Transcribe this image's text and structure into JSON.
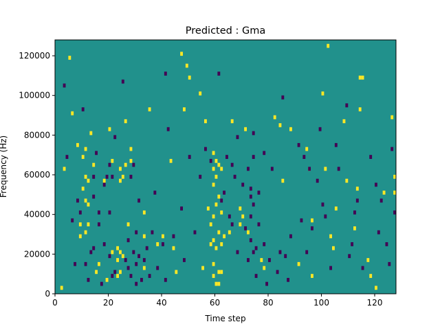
{
  "chart_data": {
    "type": "heatmap",
    "title": "Predicted : Gma",
    "xlabel": "Time step",
    "ylabel": "Frequency (Hz)",
    "xlim": [
      0,
      128
    ],
    "ylim": [
      0,
      128000
    ],
    "x_ticks": [
      0,
      20,
      40,
      60,
      80,
      100,
      120
    ],
    "y_ticks": [
      0,
      20000,
      40000,
      60000,
      80000,
      100000,
      120000
    ],
    "y_tick_labels": [
      "0",
      "20000",
      "40000",
      "60000",
      "80000",
      "100000",
      "120000"
    ],
    "grid": false,
    "colorbar": false,
    "background_value_color": "#21918c",
    "high_value_color": "#fde725",
    "low_value_color": "#440154",
    "cell_height_hz": 2000,
    "high_cells": [
      [
        2,
        2000
      ],
      [
        3,
        62000
      ],
      [
        5,
        118000
      ],
      [
        6,
        90000
      ],
      [
        8,
        74000
      ],
      [
        9,
        28000
      ],
      [
        9,
        34000
      ],
      [
        10,
        52000
      ],
      [
        10,
        68000
      ],
      [
        11,
        30000
      ],
      [
        11,
        46000
      ],
      [
        11,
        58000
      ],
      [
        11,
        72000
      ],
      [
        12,
        34000
      ],
      [
        12,
        44000
      ],
      [
        12,
        56000
      ],
      [
        13,
        80000
      ],
      [
        14,
        64000
      ],
      [
        15,
        10000
      ],
      [
        16,
        14000
      ],
      [
        18,
        56000
      ],
      [
        19,
        6000
      ],
      [
        20,
        82000
      ],
      [
        21,
        20000
      ],
      [
        21,
        66000
      ],
      [
        23,
        8000
      ],
      [
        23,
        16000
      ],
      [
        23,
        22000
      ],
      [
        24,
        10000
      ],
      [
        24,
        20000
      ],
      [
        24,
        56000
      ],
      [
        24,
        62000
      ],
      [
        25,
        18000
      ],
      [
        25,
        58000
      ],
      [
        26,
        86000
      ],
      [
        26,
        64000
      ],
      [
        27,
        34000
      ],
      [
        28,
        72000
      ],
      [
        28,
        66000
      ],
      [
        33,
        12000
      ],
      [
        33,
        40000
      ],
      [
        33,
        28000
      ],
      [
        35,
        92000
      ],
      [
        38,
        24000
      ],
      [
        40,
        28000
      ],
      [
        43,
        66000
      ],
      [
        44,
        22000
      ],
      [
        45,
        10000
      ],
      [
        47,
        120000
      ],
      [
        48,
        92000
      ],
      [
        49,
        114000
      ],
      [
        50,
        108000
      ],
      [
        54,
        100000
      ],
      [
        55,
        12000
      ],
      [
        56,
        86000
      ],
      [
        57,
        42000
      ],
      [
        58,
        24000
      ],
      [
        58,
        34000
      ],
      [
        59,
        8000
      ],
      [
        59,
        14000
      ],
      [
        59,
        26000
      ],
      [
        59,
        38000
      ],
      [
        59,
        54000
      ],
      [
        59,
        62000
      ],
      [
        59,
        70000
      ],
      [
        60,
        4000
      ],
      [
        60,
        22000
      ],
      [
        60,
        44000
      ],
      [
        60,
        58000
      ],
      [
        60,
        66000
      ],
      [
        61,
        4000
      ],
      [
        61,
        10000
      ],
      [
        61,
        30000
      ],
      [
        61,
        48000
      ],
      [
        61,
        64000
      ],
      [
        62,
        10000
      ],
      [
        62,
        24000
      ],
      [
        62,
        40000
      ],
      [
        62,
        62000
      ],
      [
        63,
        28000
      ],
      [
        65,
        30000
      ],
      [
        66,
        86000
      ],
      [
        69,
        42000
      ],
      [
        69,
        34000
      ],
      [
        70,
        38000
      ],
      [
        71,
        82000
      ],
      [
        72,
        30000
      ],
      [
        77,
        16000
      ],
      [
        78,
        12000
      ],
      [
        82,
        88000
      ],
      [
        84,
        84000
      ],
      [
        85,
        56000
      ],
      [
        88,
        82000
      ],
      [
        91,
        14000
      ],
      [
        94,
        72000
      ],
      [
        95,
        62000
      ],
      [
        96,
        36000
      ],
      [
        96,
        8000
      ],
      [
        100,
        100000
      ],
      [
        101,
        62000
      ],
      [
        102,
        124000
      ],
      [
        103,
        28000
      ],
      [
        104,
        22000
      ],
      [
        105,
        42000
      ],
      [
        108,
        86000
      ],
      [
        109,
        56000
      ],
      [
        112,
        32000
      ],
      [
        113,
        52000
      ],
      [
        114,
        92000
      ],
      [
        114,
        108000
      ],
      [
        115,
        108000
      ],
      [
        117,
        16000
      ],
      [
        118,
        8000
      ],
      [
        120,
        2000
      ],
      [
        123,
        50000
      ],
      [
        126,
        88000
      ],
      [
        127,
        50000
      ],
      [
        127,
        58000
      ]
    ],
    "low_cells": [
      [
        3,
        104000
      ],
      [
        4,
        68000
      ],
      [
        6,
        36000
      ],
      [
        7,
        14000
      ],
      [
        8,
        46000
      ],
      [
        9,
        40000
      ],
      [
        10,
        92000
      ],
      [
        11,
        14000
      ],
      [
        12,
        6000
      ],
      [
        13,
        20000
      ],
      [
        14,
        22000
      ],
      [
        14,
        48000
      ],
      [
        14,
        58000
      ],
      [
        15,
        70000
      ],
      [
        16,
        34000
      ],
      [
        16,
        40000
      ],
      [
        17,
        4000
      ],
      [
        18,
        24000
      ],
      [
        18,
        54000
      ],
      [
        19,
        58000
      ],
      [
        20,
        18000
      ],
      [
        20,
        40000
      ],
      [
        20,
        64000
      ],
      [
        21,
        58000
      ],
      [
        21,
        8000
      ],
      [
        22,
        10000
      ],
      [
        22,
        78000
      ],
      [
        25,
        106000
      ],
      [
        26,
        16000
      ],
      [
        27,
        12000
      ],
      [
        27,
        26000
      ],
      [
        28,
        8000
      ],
      [
        28,
        58000
      ],
      [
        29,
        20000
      ],
      [
        29,
        64000
      ],
      [
        30,
        4000
      ],
      [
        30,
        14000
      ],
      [
        30,
        30000
      ],
      [
        31,
        46000
      ],
      [
        31,
        18000
      ],
      [
        32,
        6000
      ],
      [
        33,
        16000
      ],
      [
        34,
        22000
      ],
      [
        35,
        8000
      ],
      [
        36,
        30000
      ],
      [
        37,
        50000
      ],
      [
        38,
        12000
      ],
      [
        40,
        24000
      ],
      [
        41,
        6000
      ],
      [
        41,
        110000
      ],
      [
        42,
        82000
      ],
      [
        44,
        28000
      ],
      [
        47,
        42000
      ],
      [
        48,
        16000
      ],
      [
        50,
        68000
      ],
      [
        52,
        30000
      ],
      [
        54,
        58000
      ],
      [
        56,
        72000
      ],
      [
        58,
        66000
      ],
      [
        61,
        110000
      ],
      [
        62,
        46000
      ],
      [
        63,
        50000
      ],
      [
        64,
        68000
      ],
      [
        65,
        38000
      ],
      [
        66,
        64000
      ],
      [
        66,
        34000
      ],
      [
        67,
        58000
      ],
      [
        68,
        20000
      ],
      [
        68,
        78000
      ],
      [
        70,
        54000
      ],
      [
        71,
        32000
      ],
      [
        72,
        62000
      ],
      [
        72,
        16000
      ],
      [
        73,
        26000
      ],
      [
        73,
        38000
      ],
      [
        73,
        48000
      ],
      [
        73,
        52000
      ],
      [
        74,
        20000
      ],
      [
        74,
        44000
      ],
      [
        74,
        68000
      ],
      [
        74,
        80000
      ],
      [
        75,
        22000
      ],
      [
        75,
        8000
      ],
      [
        76,
        50000
      ],
      [
        76,
        34000
      ],
      [
        78,
        24000
      ],
      [
        78,
        70000
      ],
      [
        79,
        4000
      ],
      [
        80,
        16000
      ],
      [
        81,
        62000
      ],
      [
        83,
        10000
      ],
      [
        84,
        20000
      ],
      [
        85,
        98000
      ],
      [
        86,
        18000
      ],
      [
        87,
        6000
      ],
      [
        88,
        28000
      ],
      [
        91,
        74000
      ],
      [
        92,
        36000
      ],
      [
        93,
        68000
      ],
      [
        94,
        20000
      ],
      [
        95,
        62000
      ],
      [
        96,
        32000
      ],
      [
        98,
        56000
      ],
      [
        99,
        82000
      ],
      [
        100,
        44000
      ],
      [
        101,
        38000
      ],
      [
        103,
        12000
      ],
      [
        105,
        74000
      ],
      [
        106,
        62000
      ],
      [
        109,
        94000
      ],
      [
        110,
        18000
      ],
      [
        111,
        24000
      ],
      [
        112,
        40000
      ],
      [
        113,
        46000
      ],
      [
        115,
        12000
      ],
      [
        118,
        68000
      ],
      [
        120,
        54000
      ],
      [
        121,
        30000
      ],
      [
        122,
        46000
      ],
      [
        124,
        24000
      ],
      [
        125,
        14000
      ],
      [
        126,
        72000
      ],
      [
        127,
        40000
      ]
    ]
  }
}
